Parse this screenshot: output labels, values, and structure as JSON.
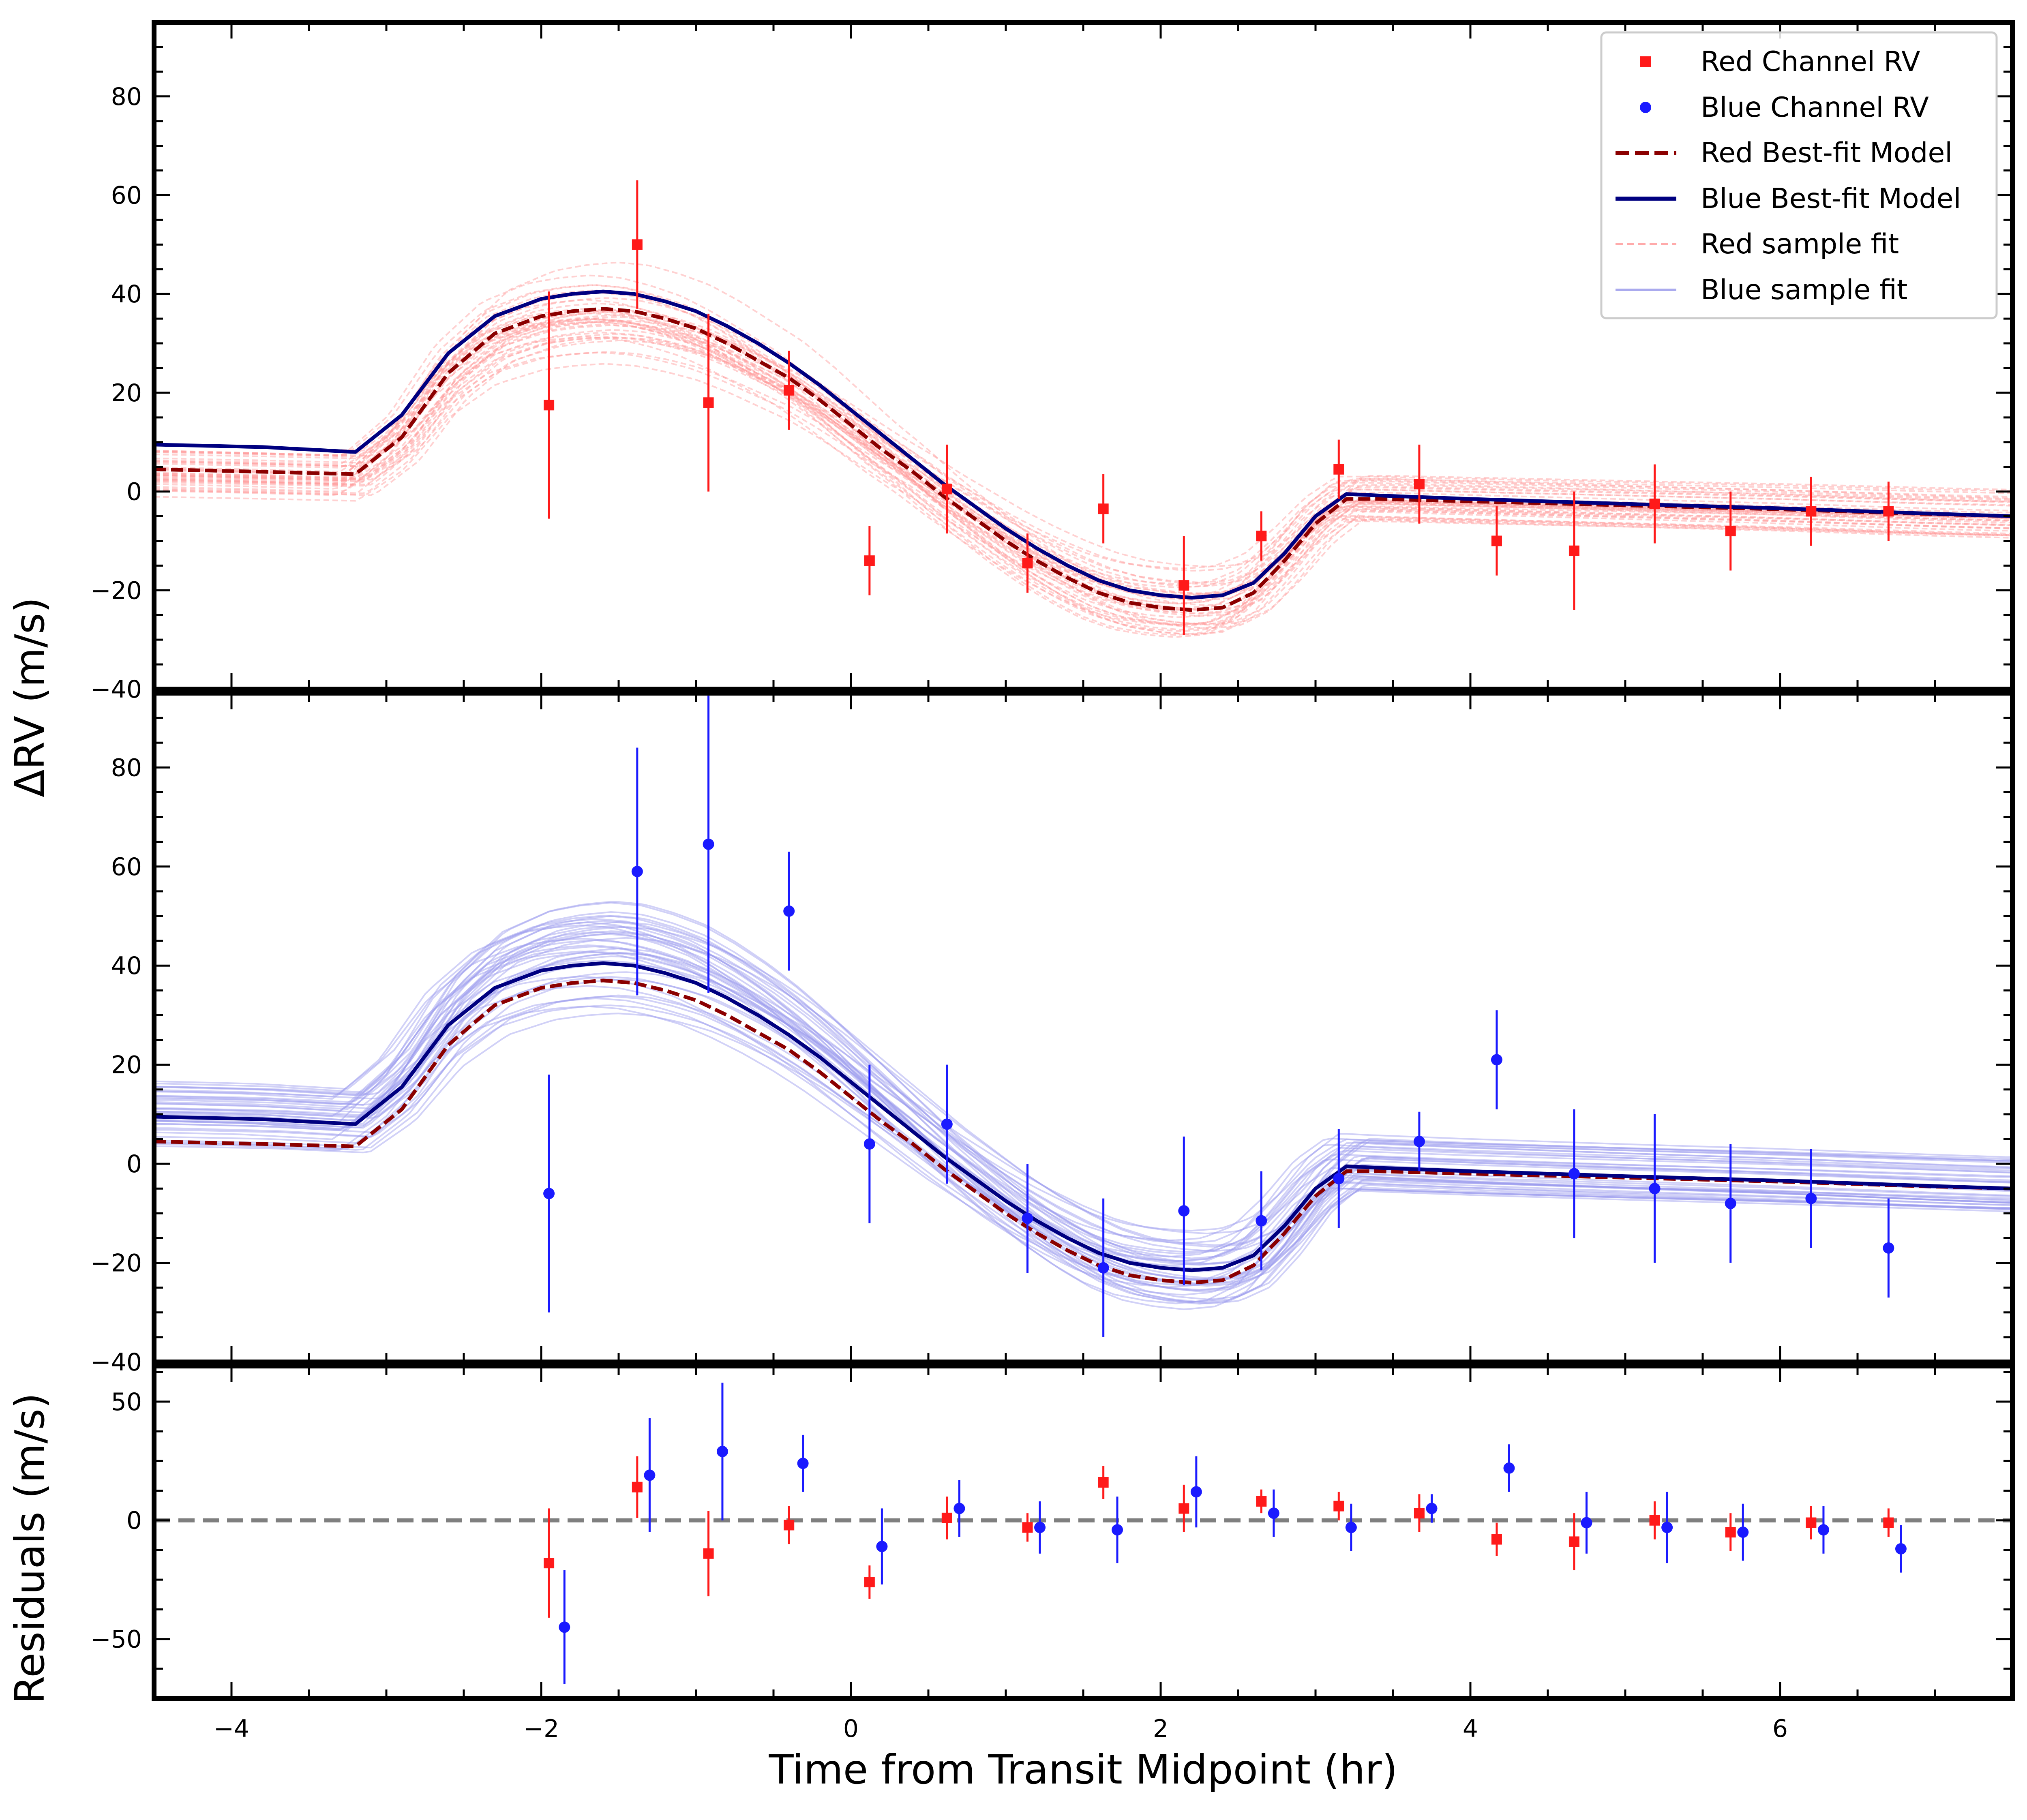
{
  "chart_data": {
    "type": "scatter",
    "layout": "three stacked panels sharing the x axis",
    "xlabel": "Time from Transit Midpoint (hr)",
    "shared_ylabel": "ΔRV (m/s)",
    "xlim": [
      -4.5,
      7.5
    ],
    "xticks": [
      -4,
      -2,
      0,
      2,
      4,
      6
    ],
    "xtick_labels": [
      "−4",
      "−2",
      "0",
      "2",
      "4",
      "6"
    ],
    "colors": {
      "red_points": "#ff1a1a",
      "blue_points": "#1a1aff",
      "red_model": "#8b0000",
      "blue_model": "#000080",
      "red_samples": "#ff9999",
      "blue_samples": "#9999ee",
      "zero_line": "#7f7f7f"
    },
    "legend": {
      "position": "upper right of top panel",
      "entries": [
        {
          "label": "Red Channel RV",
          "marker": "square",
          "color": "#ff1a1a"
        },
        {
          "label": "Blue Channel RV",
          "marker": "circle",
          "color": "#1a1aff"
        },
        {
          "label": "Red Best-fit Model",
          "line": "dashed",
          "color": "#8b0000"
        },
        {
          "label": "Blue Best-fit Model",
          "line": "solid",
          "color": "#000080"
        },
        {
          "label": "Red sample fit",
          "line": "dashed",
          "color": "#ffaaaa"
        },
        {
          "label": "Blue sample fit",
          "line": "solid",
          "color": "#aaaaee"
        }
      ]
    },
    "model": {
      "description": "Rossiter-McLaughlin anomaly best-fit curves",
      "red_best_fit": {
        "x": [
          -4.5,
          -3.8,
          -3.2,
          -2.9,
          -2.6,
          -2.3,
          -2.0,
          -1.8,
          -1.6,
          -1.4,
          -1.2,
          -1.0,
          -0.8,
          -0.6,
          -0.4,
          -0.2,
          0.0,
          0.2,
          0.4,
          0.6,
          0.8,
          1.0,
          1.2,
          1.4,
          1.6,
          1.8,
          2.0,
          2.2,
          2.4,
          2.6,
          2.8,
          3.0,
          3.2,
          3.4,
          4.0,
          5.0,
          6.0,
          7.0,
          7.5
        ],
        "y": [
          4.5,
          4.0,
          3.5,
          11,
          24,
          32,
          35.5,
          36.5,
          37,
          36.5,
          35,
          33,
          30,
          26.5,
          23,
          18.5,
          13.5,
          8.5,
          4,
          -1,
          -5.5,
          -10,
          -14,
          -17.5,
          -20.5,
          -22.5,
          -23.5,
          -24,
          -23.5,
          -20.5,
          -14,
          -6.5,
          -1.5,
          -1.5,
          -2,
          -2.8,
          -3.6,
          -4.6,
          -5.0
        ]
      },
      "blue_best_fit": {
        "x": [
          -4.5,
          -3.8,
          -3.2,
          -2.9,
          -2.6,
          -2.3,
          -2.0,
          -1.8,
          -1.6,
          -1.4,
          -1.2,
          -1.0,
          -0.8,
          -0.6,
          -0.4,
          -0.2,
          0.0,
          0.2,
          0.4,
          0.6,
          0.8,
          1.0,
          1.2,
          1.4,
          1.6,
          1.8,
          2.0,
          2.2,
          2.4,
          2.6,
          2.8,
          3.0,
          3.2,
          3.4,
          4.0,
          5.0,
          6.0,
          7.0,
          7.5
        ],
        "y": [
          9.5,
          9.0,
          8.0,
          15.5,
          28,
          35.5,
          39,
          40,
          40.5,
          40,
          38.5,
          36.5,
          33.5,
          30,
          26,
          21.5,
          16.5,
          11.5,
          6.5,
          1.5,
          -3,
          -7.5,
          -11.5,
          -15,
          -18,
          -20,
          -21,
          -21.5,
          -21,
          -18.5,
          -12.5,
          -5,
          -0.5,
          -0.8,
          -1.5,
          -2.5,
          -3.4,
          -4.5,
          -5.0
        ]
      },
      "sample_count_per_channel": 40
    },
    "series": [
      {
        "name": "Red Channel RV",
        "panel": "top",
        "marker": "square",
        "x": [
          -1.95,
          -1.38,
          -0.92,
          -0.4,
          0.12,
          0.62,
          1.14,
          1.63,
          2.15,
          2.65,
          3.15,
          3.67,
          4.17,
          4.67,
          5.19,
          5.68,
          6.2,
          6.7
        ],
        "y": [
          17.5,
          50,
          18,
          20.5,
          -14,
          0.5,
          -14.5,
          -3.5,
          -19,
          -9,
          4.5,
          1.5,
          -10,
          -12,
          -2.5,
          -8,
          -4,
          -4
        ],
        "yerr": [
          23,
          13,
          18,
          8,
          7,
          9,
          6,
          7,
          10,
          5,
          6,
          8,
          7,
          12,
          8,
          8,
          7,
          6
        ]
      },
      {
        "name": "Blue Channel RV",
        "panel": "middle",
        "marker": "circle",
        "x": [
          -1.95,
          -1.38,
          -0.92,
          -0.4,
          0.12,
          0.62,
          1.14,
          1.63,
          2.15,
          2.65,
          3.15,
          3.67,
          4.17,
          4.67,
          5.19,
          5.68,
          6.2,
          6.7
        ],
        "y": [
          -6,
          59,
          64.5,
          51,
          4,
          8,
          -11,
          -21,
          -9.5,
          -11.5,
          -3,
          4.5,
          21,
          -2,
          -5,
          -8,
          -7,
          -17
        ],
        "yerr": [
          24,
          25,
          30,
          12,
          16,
          12,
          11,
          14,
          15,
          10,
          10,
          6,
          10,
          13,
          15,
          12,
          10,
          10
        ]
      },
      {
        "name": "Red residuals",
        "panel": "bottom",
        "marker": "square",
        "x": [
          -1.95,
          -1.38,
          -0.92,
          -0.4,
          0.12,
          0.62,
          1.14,
          1.63,
          2.15,
          2.65,
          3.15,
          3.67,
          4.17,
          4.67,
          5.19,
          5.68,
          6.2,
          6.7
        ],
        "y": [
          -18,
          14,
          -14,
          -2,
          -26,
          1,
          -3,
          16,
          5,
          8,
          6,
          3,
          -8,
          -9,
          0,
          -5,
          -1,
          -1
        ],
        "yerr": [
          23,
          13,
          18,
          8,
          7,
          9,
          6,
          7,
          10,
          5,
          6,
          8,
          7,
          12,
          8,
          8,
          7,
          6
        ]
      },
      {
        "name": "Blue residuals",
        "panel": "bottom",
        "marker": "circle",
        "x": [
          -1.85,
          -1.3,
          -0.83,
          -0.31,
          0.2,
          0.7,
          1.22,
          1.72,
          2.23,
          2.73,
          3.23,
          3.75,
          4.25,
          4.75,
          5.27,
          5.76,
          6.28,
          6.78
        ],
        "y": [
          -45,
          19,
          29,
          24,
          -11,
          5,
          -3,
          -4,
          12,
          3,
          -3,
          5,
          22,
          -1,
          -3,
          -5,
          -4,
          -12
        ],
        "yerr": [
          24,
          24,
          29,
          12,
          16,
          12,
          11,
          14,
          15,
          10,
          10,
          6,
          10,
          13,
          15,
          12,
          10,
          10
        ]
      }
    ],
    "panels": [
      {
        "id": "top",
        "ylim": [
          -40,
          95
        ],
        "yticks": [
          -40,
          -20,
          0,
          20,
          40,
          60,
          80
        ],
        "ytick_labels": [
          "−40",
          "−20",
          "0",
          "20",
          "40",
          "60",
          "80"
        ],
        "shows": [
          "Red sample fit",
          "Red Best-fit Model",
          "Blue Best-fit Model",
          "Red Channel RV"
        ]
      },
      {
        "id": "middle",
        "ylim": [
          -40,
          95
        ],
        "yticks": [
          -40,
          -20,
          0,
          20,
          40,
          60,
          80
        ],
        "ytick_labels": [
          "−40",
          "−20",
          "0",
          "20",
          "40",
          "60",
          "80"
        ],
        "shows": [
          "Blue sample fit",
          "Red Best-fit Model",
          "Blue Best-fit Model",
          "Blue Channel RV"
        ]
      },
      {
        "id": "bottom",
        "ylabel": "Residuals (m/s)",
        "ylim": [
          -75,
          65
        ],
        "yticks": [
          -50,
          0,
          50
        ],
        "ytick_labels": [
          "−50",
          "0",
          "50"
        ],
        "zero_line": "dashed gray at y = 0",
        "shows": [
          "Red residuals",
          "Blue residuals"
        ]
      }
    ]
  }
}
